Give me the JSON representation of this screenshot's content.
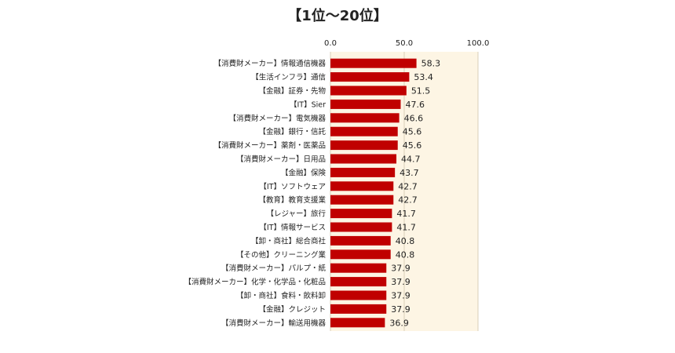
{
  "chart_data": {
    "type": "bar",
    "orientation": "horizontal",
    "title": "【1位～20位】",
    "xlim": [
      0,
      100
    ],
    "xticks": [
      "0.0",
      "50.0",
      "100.0"
    ],
    "gridlines": true,
    "legend": "none",
    "categories": [
      "【消費財メーカー】情報通信機器",
      "【生活インフラ】通信",
      "【金融】証券・先物",
      "【IT】Sier",
      "【消費財メーカー】電気機器",
      "【金融】銀行・信託",
      "【消費財メーカー】薬剤・医薬品",
      "【消費財メーカー】日用品",
      "【金融】保険",
      "【IT】ソフトウェア",
      "【教育】教育支援業",
      "【レジャー】旅行",
      "【IT】情報サービス",
      "【卸・商社】総合商社",
      "【その他】クリーニング業",
      "【消費財メーカー】パルプ・紙",
      "【消費財メーカー】化学・化学品・化粧品",
      "【卸・商社】食料・飲料卸",
      "【金融】クレジット",
      "【消費財メーカー】輸送用機器"
    ],
    "values": [
      58.3,
      53.4,
      51.5,
      47.6,
      46.6,
      45.6,
      45.6,
      44.7,
      43.7,
      42.7,
      42.7,
      41.7,
      41.7,
      40.8,
      40.8,
      37.9,
      37.9,
      37.9,
      37.9,
      36.9
    ],
    "value_labels": [
      "58.3",
      "53.4",
      "51.5",
      "47.6",
      "46.6",
      "45.6",
      "45.6",
      "44.7",
      "43.7",
      "42.7",
      "42.7",
      "41.7",
      "41.7",
      "40.8",
      "40.8",
      "37.9",
      "37.9",
      "37.9",
      "37.9",
      "36.9"
    ],
    "colors": {
      "bar": "#c00000",
      "plot_background": "#fdf5e4",
      "gridline": "#d9cfb8",
      "text": "#222222"
    }
  }
}
